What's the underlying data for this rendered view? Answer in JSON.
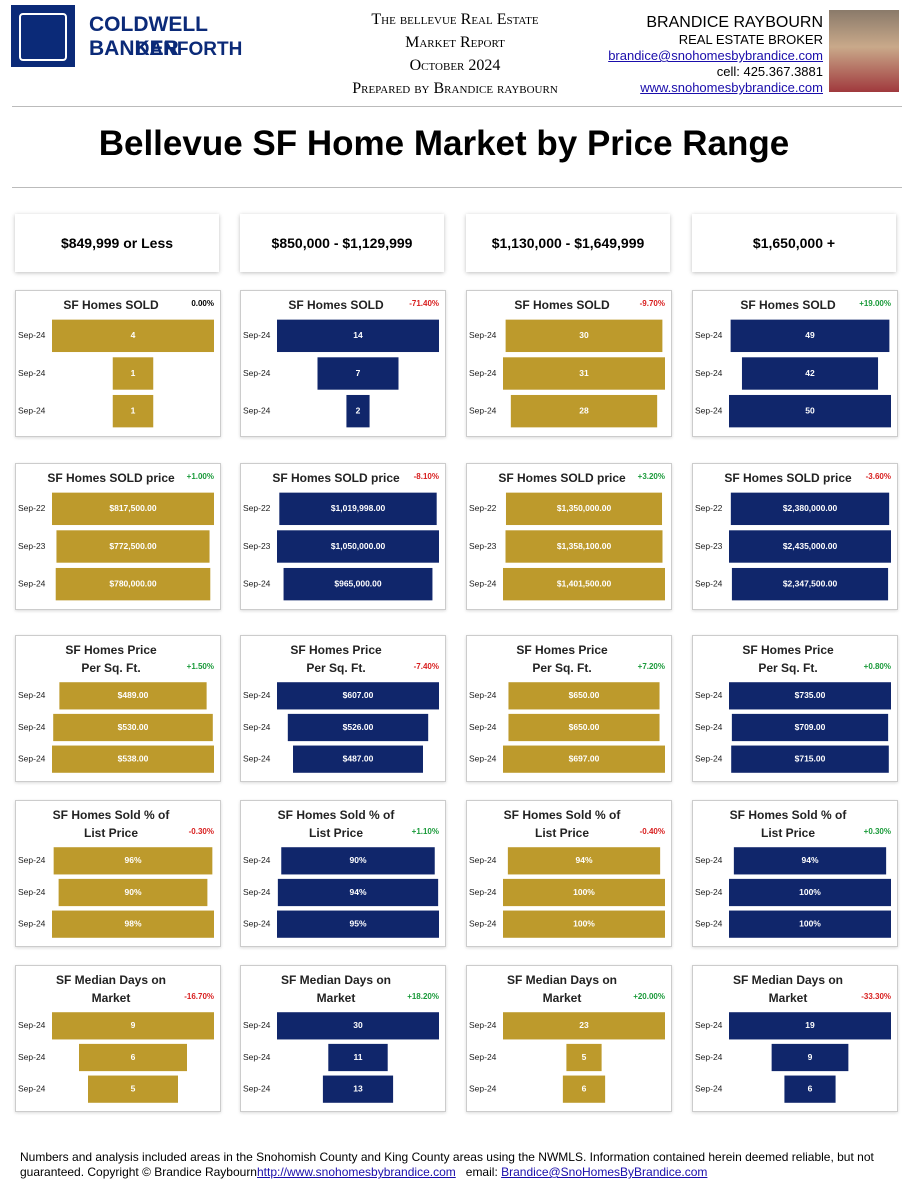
{
  "header": {
    "brand": "COLDWELL BANKER",
    "office": "DANFORTH",
    "report_lines": [
      "The bellevue Real Estate",
      "Market Report",
      "October 2024",
      "Prepared by Brandice raybourn"
    ],
    "agent_name": "BRANDICE RAYBOURN",
    "agent_title": "REAL ESTATE BROKER",
    "email": "brandice@snohomesbybrandice.com",
    "phone": "cell: 425.367.3881",
    "website": "www.snohomesbybrandice.com"
  },
  "title": "Bellevue SF Home Market by Price Range",
  "price_ranges": [
    "$849,999 or Less",
    "$850,000 - $1,129,999",
    "$1,130,000 - $1,649,999",
    "$1,650,000 +"
  ],
  "chart_data": [
    {
      "type": "bar",
      "title": [
        "SF Homes SOLD"
      ],
      "change": "0.00%",
      "color": "#bd9a2c",
      "categories": [
        "Sep-24",
        "Sep-24",
        "Sep-24"
      ],
      "values": [
        4,
        1,
        1
      ]
    },
    {
      "type": "bar",
      "title": [
        "SF Homes SOLD"
      ],
      "change": "-71.40%",
      "color": "#10266b",
      "categories": [
        "Sep-24",
        "Sep-24",
        "Sep-24"
      ],
      "values": [
        14,
        7,
        2
      ]
    },
    {
      "type": "bar",
      "title": [
        "SF Homes SOLD"
      ],
      "change": "-9.70%",
      "color": "#bd9a2c",
      "categories": [
        "Sep-24",
        "Sep-24",
        "Sep-24"
      ],
      "values": [
        30,
        31,
        28
      ]
    },
    {
      "type": "bar",
      "title": [
        "SF Homes SOLD"
      ],
      "change": "+19.00%",
      "color": "#10266b",
      "categories": [
        "Sep-24",
        "Sep-24",
        "Sep-24"
      ],
      "values": [
        49,
        42,
        50
      ]
    },
    {
      "type": "bar",
      "title": [
        "SF Homes SOLD price"
      ],
      "change": "+1.00%",
      "color": "#bd9a2c",
      "categories": [
        "Sep-22",
        "Sep-23",
        "Sep-24"
      ],
      "values": [
        817500,
        772500,
        780000
      ],
      "value_labels": [
        "$817,500.00",
        "$772,500.00",
        "$780,000.00"
      ]
    },
    {
      "type": "bar",
      "title": [
        "SF Homes SOLD price"
      ],
      "change": "-8.10%",
      "color": "#10266b",
      "categories": [
        "Sep-22",
        "Sep-23",
        "Sep-24"
      ],
      "values": [
        1019998,
        1050000,
        965000
      ],
      "value_labels": [
        "$1,019,998.00",
        "$1,050,000.00",
        "$965,000.00"
      ]
    },
    {
      "type": "bar",
      "title": [
        "SF Homes SOLD price"
      ],
      "change": "+3.20%",
      "color": "#bd9a2c",
      "categories": [
        "Sep-22",
        "Sep-23",
        "Sep-24"
      ],
      "values": [
        1350000,
        1358100,
        1401500
      ],
      "value_labels": [
        "$1,350,000.00",
        "$1,358,100.00",
        "$1,401,500.00"
      ]
    },
    {
      "type": "bar",
      "title": [
        "SF Homes SOLD price"
      ],
      "change": "-3.60%",
      "color": "#10266b",
      "categories": [
        "Sep-22",
        "Sep-23",
        "Sep-24"
      ],
      "values": [
        2380000,
        2435000,
        2347500
      ],
      "value_labels": [
        "$2,380,000.00",
        "$2,435,000.00",
        "$2,347,500.00"
      ]
    },
    {
      "type": "bar",
      "title": [
        "SF Homes Price",
        "Per Sq. Ft."
      ],
      "change": "+1.50%",
      "color": "#bd9a2c",
      "categories": [
        "Sep-24",
        "Sep-24",
        "Sep-24"
      ],
      "values": [
        489,
        530,
        538
      ],
      "value_labels": [
        "$489.00",
        "$530.00",
        "$538.00"
      ]
    },
    {
      "type": "bar",
      "title": [
        "SF Homes Price",
        "Per Sq. Ft."
      ],
      "change": "-7.40%",
      "color": "#10266b",
      "categories": [
        "Sep-24",
        "Sep-24",
        "Sep-24"
      ],
      "values": [
        607,
        526,
        487
      ],
      "value_labels": [
        "$607.00",
        "$526.00",
        "$487.00"
      ]
    },
    {
      "type": "bar",
      "title": [
        "SF Homes Price",
        "Per Sq. Ft."
      ],
      "change": "+7.20%",
      "color": "#bd9a2c",
      "categories": [
        "Sep-24",
        "Sep-24",
        "Sep-24"
      ],
      "values": [
        650,
        650,
        697
      ],
      "value_labels": [
        "$650.00",
        "$650.00",
        "$697.00"
      ]
    },
    {
      "type": "bar",
      "title": [
        "SF Homes Price",
        "Per Sq. Ft."
      ],
      "change": "+0.80%",
      "color": "#10266b",
      "categories": [
        "Sep-24",
        "Sep-24",
        "Sep-24"
      ],
      "values": [
        735,
        709,
        715
      ],
      "value_labels": [
        "$735.00",
        "$709.00",
        "$715.00"
      ]
    },
    {
      "type": "bar",
      "title": [
        "SF Homes Sold % of",
        "List Price"
      ],
      "change": "-0.30%",
      "color": "#bd9a2c",
      "categories": [
        "Sep-24",
        "Sep-24",
        "Sep-24"
      ],
      "values": [
        96,
        90,
        98
      ],
      "value_labels": [
        "96%",
        "90%",
        "98%"
      ]
    },
    {
      "type": "bar",
      "title": [
        "SF Homes Sold % of",
        "List Price"
      ],
      "change": "+1.10%",
      "color": "#10266b",
      "categories": [
        "Sep-24",
        "Sep-24",
        "Sep-24"
      ],
      "values": [
        90,
        94,
        95
      ],
      "value_labels": [
        "90%",
        "94%",
        "95%"
      ]
    },
    {
      "type": "bar",
      "title": [
        "SF Homes Sold % of",
        "List Price"
      ],
      "change": "-0.40%",
      "color": "#bd9a2c",
      "categories": [
        "Sep-24",
        "Sep-24",
        "Sep-24"
      ],
      "values": [
        94,
        100,
        100
      ],
      "value_labels": [
        "94%",
        "100%",
        "100%"
      ]
    },
    {
      "type": "bar",
      "title": [
        "SF Homes Sold % of",
        "List Price"
      ],
      "change": "+0.30%",
      "color": "#10266b",
      "categories": [
        "Sep-24",
        "Sep-24",
        "Sep-24"
      ],
      "values": [
        94,
        100,
        100
      ],
      "value_labels": [
        "94%",
        "100%",
        "100%"
      ]
    },
    {
      "type": "bar",
      "title": [
        "SF Median Days on",
        "Market"
      ],
      "change": "-16.70%",
      "color": "#bd9a2c",
      "categories": [
        "Sep-24",
        "Sep-24",
        "Sep-24"
      ],
      "values": [
        9,
        6,
        5
      ]
    },
    {
      "type": "bar",
      "title": [
        "SF Median Days on",
        "Market"
      ],
      "change": "+18.20%",
      "color": "#10266b",
      "categories": [
        "Sep-24",
        "Sep-24",
        "Sep-24"
      ],
      "values": [
        30,
        11,
        13
      ]
    },
    {
      "type": "bar",
      "title": [
        "SF Median Days on",
        "Market"
      ],
      "change": "+20.00%",
      "color": "#bd9a2c",
      "categories": [
        "Sep-24",
        "Sep-24",
        "Sep-24"
      ],
      "values": [
        23,
        5,
        6
      ]
    },
    {
      "type": "bar",
      "title": [
        "SF Median Days on",
        "Market"
      ],
      "change": "-33.30%",
      "color": "#10266b",
      "categories": [
        "Sep-24",
        "Sep-24",
        "Sep-24"
      ],
      "values": [
        19,
        9,
        6
      ]
    }
  ],
  "footer": {
    "text": "Numbers and analysis included areas in the Snohomish County and King County areas using the NWMLS.  Information contained herein deemed reliable, but not guaranteed. Copyright © Brandice Raybourn",
    "website_link": "http://www.snohomesbybrandice.com",
    "email_label": "email:",
    "email_link": "Brandice@SnoHomesByBrandice.com"
  }
}
